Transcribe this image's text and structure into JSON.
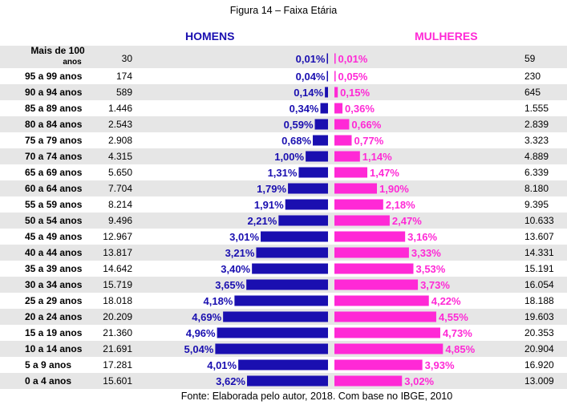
{
  "chart_data": {
    "type": "bar",
    "title": "Figura 14 – Faixa Etária",
    "source": "Fonte: Elaborada pelo autor, 2018. Com base no IBGE, 2010",
    "series_names": {
      "men": "HOMENS",
      "women": "MULHERES"
    },
    "colors": {
      "men": "#1a0fb0",
      "women": "#ff29d6",
      "stripe": "#e6e6e6"
    },
    "categories": [
      {
        "label": "Mais de 100",
        "sub": "anos",
        "men_count": "30",
        "men_pct": 0.01,
        "men_pct_label": "0,01%",
        "women_pct": 0.01,
        "women_pct_label": "0,01%",
        "women_count": "59"
      },
      {
        "label": "95 a 99 anos",
        "men_count": "174",
        "men_pct": 0.04,
        "men_pct_label": "0,04%",
        "women_pct": 0.05,
        "women_pct_label": "0,05%",
        "women_count": "230"
      },
      {
        "label": "90 a 94 anos",
        "men_count": "589",
        "men_pct": 0.14,
        "men_pct_label": "0,14%",
        "women_pct": 0.15,
        "women_pct_label": "0,15%",
        "women_count": "645"
      },
      {
        "label": "85 a 89 anos",
        "men_count": "1.446",
        "men_pct": 0.34,
        "men_pct_label": "0,34%",
        "women_pct": 0.36,
        "women_pct_label": "0,36%",
        "women_count": "1.555"
      },
      {
        "label": "80 a 84 anos",
        "men_count": "2.543",
        "men_pct": 0.59,
        "men_pct_label": "0,59%",
        "women_pct": 0.66,
        "women_pct_label": "0,66%",
        "women_count": "2.839"
      },
      {
        "label": "75 a 79 anos",
        "men_count": "2.908",
        "men_pct": 0.68,
        "men_pct_label": "0,68%",
        "women_pct": 0.77,
        "women_pct_label": "0,77%",
        "women_count": "3.323"
      },
      {
        "label": "70 a 74 anos",
        "men_count": "4.315",
        "men_pct": 1.0,
        "men_pct_label": "1,00%",
        "women_pct": 1.14,
        "women_pct_label": "1,14%",
        "women_count": "4.889"
      },
      {
        "label": "65 a 69 anos",
        "men_count": "5.650",
        "men_pct": 1.31,
        "men_pct_label": "1,31%",
        "women_pct": 1.47,
        "women_pct_label": "1,47%",
        "women_count": "6.339"
      },
      {
        "label": "60 a 64 anos",
        "men_count": "7.704",
        "men_pct": 1.79,
        "men_pct_label": "1,79%",
        "women_pct": 1.9,
        "women_pct_label": "1,90%",
        "women_count": "8.180"
      },
      {
        "label": "55 a 59 anos",
        "men_count": "8.214",
        "men_pct": 1.91,
        "men_pct_label": "1,91%",
        "women_pct": 2.18,
        "women_pct_label": "2,18%",
        "women_count": "9.395"
      },
      {
        "label": "50 a 54 anos",
        "men_count": "9.496",
        "men_pct": 2.21,
        "men_pct_label": "2,21%",
        "women_pct": 2.47,
        "women_pct_label": "2,47%",
        "women_count": "10.633"
      },
      {
        "label": "45 a 49 anos",
        "men_count": "12.967",
        "men_pct": 3.01,
        "men_pct_label": "3,01%",
        "women_pct": 3.16,
        "women_pct_label": "3,16%",
        "women_count": "13.607"
      },
      {
        "label": "40 a 44 anos",
        "men_count": "13.817",
        "men_pct": 3.21,
        "men_pct_label": "3,21%",
        "women_pct": 3.33,
        "women_pct_label": "3,33%",
        "women_count": "14.331"
      },
      {
        "label": "35 a 39 anos",
        "men_count": "14.642",
        "men_pct": 3.4,
        "men_pct_label": "3,40%",
        "women_pct": 3.53,
        "women_pct_label": "3,53%",
        "women_count": "15.191"
      },
      {
        "label": "30 a 34 anos",
        "men_count": "15.719",
        "men_pct": 3.65,
        "men_pct_label": "3,65%",
        "women_pct": 3.73,
        "women_pct_label": "3,73%",
        "women_count": "16.054"
      },
      {
        "label": "25 a 29 anos",
        "men_count": "18.018",
        "men_pct": 4.18,
        "men_pct_label": "4,18%",
        "women_pct": 4.22,
        "women_pct_label": "4,22%",
        "women_count": "18.188"
      },
      {
        "label": "20 a 24 anos",
        "men_count": "20.209",
        "men_pct": 4.69,
        "men_pct_label": "4,69%",
        "women_pct": 4.55,
        "women_pct_label": "4,55%",
        "women_count": "19.603"
      },
      {
        "label": "15 a 19 anos",
        "men_count": "21.360",
        "men_pct": 4.96,
        "men_pct_label": "4,96%",
        "women_pct": 4.73,
        "women_pct_label": "4,73%",
        "women_count": "20.353"
      },
      {
        "label": "10 a 14 anos",
        "men_count": "21.691",
        "men_pct": 5.04,
        "men_pct_label": "5,04%",
        "women_pct": 4.85,
        "women_pct_label": "4,85%",
        "women_count": "20.904"
      },
      {
        "label": "5 a 9 anos",
        "men_count": "17.281",
        "men_pct": 4.01,
        "men_pct_label": "4,01%",
        "women_pct": 3.93,
        "women_pct_label": "3,93%",
        "women_count": "16.920"
      },
      {
        "label": "0 a 4 anos",
        "men_count": "15.601",
        "men_pct": 3.62,
        "men_pct_label": "3,62%",
        "women_pct": 3.02,
        "women_pct_label": "3,02%",
        "women_count": "13.009"
      }
    ]
  }
}
